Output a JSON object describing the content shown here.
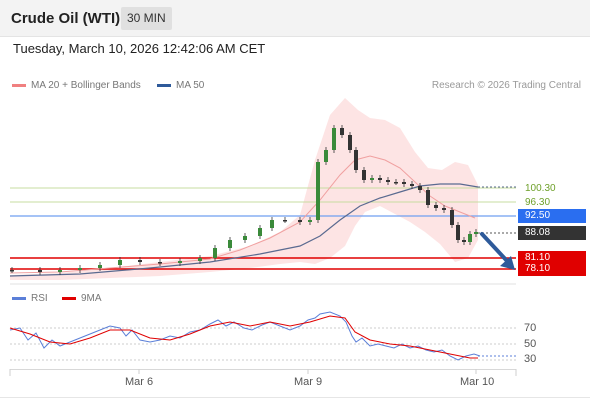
{
  "header": {
    "title": "Crude Oil (WTI)",
    "timeframe": "30 MIN"
  },
  "datetime": "Tuesday, March 10, 2026 12:42:06 AM CET",
  "legend": {
    "ma20_label": "MA 20 + Bollinger Bands",
    "ma50_label": "MA 50",
    "rsi_label": "RSI",
    "ma9_label": "9MA",
    "copyright": "Research © 2026 Trading Central"
  },
  "colors": {
    "ma20": "#f08080",
    "ma50": "#2e5a9a",
    "rsi": "#5b7fd8",
    "ma9": "#e00000",
    "resistance": "#8fbf3f",
    "pivot": "#2a6ef0",
    "support": "#e00000",
    "current": "#333333"
  },
  "price_levels": [
    {
      "value": "100.30",
      "kind": "resistance"
    },
    {
      "value": "96.30",
      "kind": "resistance"
    },
    {
      "value": "92.50",
      "kind": "pivot"
    },
    {
      "value": "88.08",
      "kind": "current"
    },
    {
      "value": "81.10",
      "kind": "support"
    },
    {
      "value": "78.10",
      "kind": "support"
    }
  ],
  "rsi_levels": [
    "70",
    "50",
    "30"
  ],
  "x_ticks": [
    "Mar 6",
    "Mar 9",
    "Mar 10"
  ]
}
